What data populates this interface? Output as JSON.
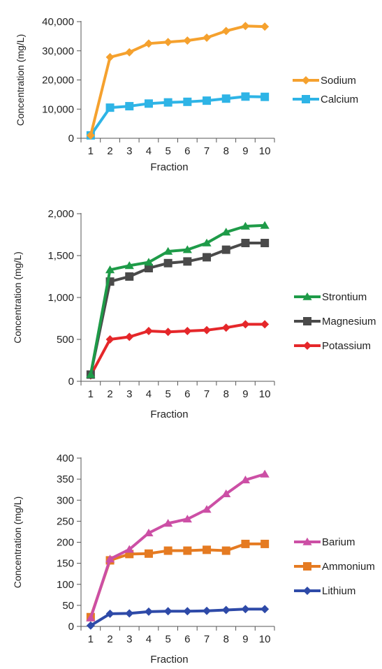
{
  "chart_data": [
    {
      "type": "line",
      "xlabel": "Fraction",
      "ylabel": "Concentration (mg/L)",
      "x": [
        1,
        2,
        3,
        4,
        5,
        6,
        7,
        8,
        9,
        10
      ],
      "ylim": [
        0,
        40000
      ],
      "yticks": [
        0,
        10000,
        20000,
        30000,
        40000
      ],
      "ytick_labels": [
        "0",
        "10,000",
        "20,000",
        "30,000",
        "40,000"
      ],
      "legend_position": "right",
      "series": [
        {
          "name": "Sodium",
          "color": "#F5A12E",
          "marker": "diamond",
          "values": [
            1000,
            27800,
            29500,
            32500,
            33000,
            33500,
            34500,
            36800,
            38500,
            38300
          ]
        },
        {
          "name": "Calcium",
          "color": "#2EB4E6",
          "marker": "square",
          "values": [
            1000,
            10500,
            11000,
            11900,
            12300,
            12500,
            12900,
            13600,
            14300,
            14200
          ]
        }
      ]
    },
    {
      "type": "line",
      "xlabel": "Fraction",
      "ylabel": "Concentration (mg/L)",
      "x": [
        1,
        2,
        3,
        4,
        5,
        6,
        7,
        8,
        9,
        10
      ],
      "ylim": [
        0,
        2000
      ],
      "yticks": [
        0,
        500,
        1000,
        1500,
        2000
      ],
      "ytick_labels": [
        "0",
        "500",
        "1,000",
        "1,500",
        "2,000"
      ],
      "legend_position": "right",
      "series": [
        {
          "name": "Strontium",
          "color": "#1E9B48",
          "marker": "triangle",
          "values": [
            80,
            1330,
            1380,
            1420,
            1550,
            1570,
            1650,
            1780,
            1850,
            1860
          ]
        },
        {
          "name": "Magnesium",
          "color": "#4A4A4A",
          "marker": "square",
          "values": [
            80,
            1190,
            1250,
            1350,
            1410,
            1430,
            1480,
            1570,
            1650,
            1650
          ]
        },
        {
          "name": "Potassium",
          "color": "#E5272A",
          "marker": "diamond",
          "values": [
            70,
            500,
            530,
            600,
            590,
            600,
            610,
            640,
            680,
            680
          ]
        }
      ]
    },
    {
      "type": "line",
      "xlabel": "Fraction",
      "ylabel": "Concentration (mg/L)",
      "x": [
        1,
        2,
        3,
        4,
        5,
        6,
        7,
        8,
        9,
        10
      ],
      "ylim": [
        0,
        400
      ],
      "yticks": [
        0,
        50,
        100,
        150,
        200,
        250,
        300,
        350,
        400
      ],
      "ytick_labels": [
        "0",
        "50",
        "100",
        "150",
        "200",
        "250",
        "300",
        "350",
        "400"
      ],
      "legend_position": "right",
      "series": [
        {
          "name": "Barium",
          "color": "#CC4FA5",
          "marker": "triangle",
          "values": [
            20,
            160,
            183,
            222,
            245,
            255,
            278,
            315,
            348,
            362
          ]
        },
        {
          "name": "Ammonium",
          "color": "#E57B22",
          "marker": "square",
          "values": [
            22,
            157,
            172,
            173,
            180,
            180,
            182,
            180,
            196,
            196
          ]
        },
        {
          "name": "Lithium",
          "color": "#2E4AA8",
          "marker": "diamond",
          "values": [
            2,
            30,
            31,
            35,
            36,
            36,
            37,
            39,
            41,
            41
          ]
        }
      ]
    }
  ]
}
